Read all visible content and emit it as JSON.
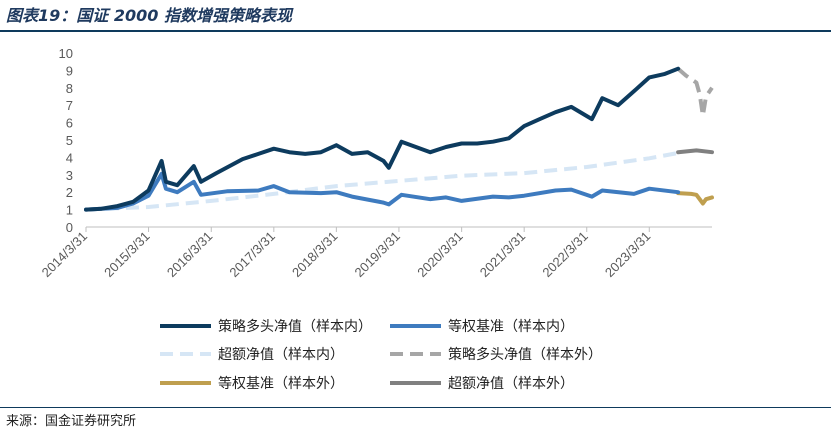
{
  "header": {
    "title": "图表19：国证 2000 指数增强策略表现"
  },
  "footer": {
    "source": "来源：国金证券研究所"
  },
  "chart_data": {
    "type": "line",
    "title": "",
    "xlabel": "",
    "ylabel": "",
    "ylim": [
      0,
      10
    ],
    "yticks": [
      "0",
      "1",
      "2",
      "3",
      "4",
      "5",
      "6",
      "7",
      "8",
      "9",
      "10"
    ],
    "xticks": [
      "2014/3/31",
      "2015/3/31",
      "2016/3/31",
      "2017/3/31",
      "2018/3/31",
      "2019/3/31",
      "2020/3/31",
      "2021/3/31",
      "2022/3/31",
      "2023/3/31"
    ],
    "legend_position": "bottom",
    "series": [
      {
        "name": "策略多头净值（样本内）",
        "color": "#0d3b5e",
        "dash": "solid",
        "width": 4,
        "points": [
          [
            "2014-03-31",
            1.0
          ],
          [
            "2014-06-30",
            1.05
          ],
          [
            "2014-09-30",
            1.2
          ],
          [
            "2014-12-31",
            1.45
          ],
          [
            "2015-03-31",
            2.1
          ],
          [
            "2015-06-15",
            3.8
          ],
          [
            "2015-07-10",
            2.6
          ],
          [
            "2015-09-15",
            2.4
          ],
          [
            "2015-12-20",
            3.5
          ],
          [
            "2016-01-31",
            2.6
          ],
          [
            "2016-04-30",
            3.1
          ],
          [
            "2016-09-30",
            3.9
          ],
          [
            "2016-12-31",
            4.2
          ],
          [
            "2017-03-31",
            4.5
          ],
          [
            "2017-06-30",
            4.3
          ],
          [
            "2017-09-30",
            4.2
          ],
          [
            "2017-12-31",
            4.3
          ],
          [
            "2018-03-31",
            4.7
          ],
          [
            "2018-06-30",
            4.2
          ],
          [
            "2018-09-30",
            4.3
          ],
          [
            "2018-12-31",
            3.8
          ],
          [
            "2019-01-31",
            3.4
          ],
          [
            "2019-04-15",
            4.9
          ],
          [
            "2019-09-30",
            4.3
          ],
          [
            "2019-12-31",
            4.6
          ],
          [
            "2020-03-31",
            4.8
          ],
          [
            "2020-06-30",
            4.8
          ],
          [
            "2020-09-30",
            4.9
          ],
          [
            "2020-12-31",
            5.1
          ],
          [
            "2021-03-31",
            5.8
          ],
          [
            "2021-06-30",
            6.2
          ],
          [
            "2021-09-30",
            6.6
          ],
          [
            "2021-12-31",
            6.9
          ],
          [
            "2022-04-30",
            6.2
          ],
          [
            "2022-06-30",
            7.4
          ],
          [
            "2022-09-30",
            7.0
          ],
          [
            "2022-12-31",
            7.8
          ],
          [
            "2023-03-31",
            8.6
          ],
          [
            "2023-06-30",
            8.8
          ],
          [
            "2023-09-15",
            9.1
          ]
        ]
      },
      {
        "name": "等权基准（样本内）",
        "color": "#3e7bbf",
        "dash": "solid",
        "width": 4,
        "points": [
          [
            "2014-03-31",
            1.0
          ],
          [
            "2014-09-30",
            1.1
          ],
          [
            "2014-12-31",
            1.35
          ],
          [
            "2015-03-31",
            1.8
          ],
          [
            "2015-06-15",
            3.05
          ],
          [
            "2015-07-10",
            2.2
          ],
          [
            "2015-09-15",
            2.0
          ],
          [
            "2015-12-20",
            2.6
          ],
          [
            "2016-01-31",
            1.85
          ],
          [
            "2016-06-30",
            2.05
          ],
          [
            "2016-12-31",
            2.1
          ],
          [
            "2017-03-31",
            2.35
          ],
          [
            "2017-06-30",
            2.0
          ],
          [
            "2017-12-31",
            1.95
          ],
          [
            "2018-03-31",
            2.0
          ],
          [
            "2018-06-30",
            1.75
          ],
          [
            "2018-12-31",
            1.4
          ],
          [
            "2019-01-31",
            1.3
          ],
          [
            "2019-04-15",
            1.85
          ],
          [
            "2019-09-30",
            1.6
          ],
          [
            "2019-12-31",
            1.7
          ],
          [
            "2020-03-31",
            1.5
          ],
          [
            "2020-09-30",
            1.75
          ],
          [
            "2020-12-31",
            1.7
          ],
          [
            "2021-03-31",
            1.8
          ],
          [
            "2021-09-30",
            2.1
          ],
          [
            "2021-12-31",
            2.15
          ],
          [
            "2022-04-30",
            1.75
          ],
          [
            "2022-06-30",
            2.1
          ],
          [
            "2022-12-31",
            1.9
          ],
          [
            "2023-03-31",
            2.2
          ],
          [
            "2023-09-15",
            2.0
          ]
        ]
      },
      {
        "name": "超额净值（样本内）",
        "color": "#d6e6f5",
        "dash": "dash",
        "width": 4,
        "points": [
          [
            "2014-03-31",
            1.0
          ],
          [
            "2015-03-31",
            1.15
          ],
          [
            "2016-03-31",
            1.5
          ],
          [
            "2017-03-31",
            1.9
          ],
          [
            "2018-03-31",
            2.35
          ],
          [
            "2019-03-31",
            2.65
          ],
          [
            "2020-03-31",
            2.95
          ],
          [
            "2021-03-31",
            3.1
          ],
          [
            "2022-03-31",
            3.45
          ],
          [
            "2023-03-31",
            3.95
          ],
          [
            "2023-09-15",
            4.25
          ]
        ]
      },
      {
        "name": "策略多头净值（样本外）",
        "color": "#a6a6a6",
        "dash": "dash",
        "width": 4,
        "points": [
          [
            "2023-09-15",
            9.1
          ],
          [
            "2023-10-31",
            8.7
          ],
          [
            "2023-12-31",
            8.3
          ],
          [
            "2024-01-20",
            7.6
          ],
          [
            "2024-02-07",
            6.4
          ],
          [
            "2024-02-25",
            7.5
          ],
          [
            "2024-03-31",
            8.0
          ]
        ]
      },
      {
        "name": "等权基准（样本外）",
        "color": "#bf9f4f",
        "dash": "solid",
        "width": 4,
        "points": [
          [
            "2023-09-15",
            1.95
          ],
          [
            "2023-11-30",
            1.9
          ],
          [
            "2023-12-31",
            1.85
          ],
          [
            "2024-02-07",
            1.35
          ],
          [
            "2024-02-25",
            1.6
          ],
          [
            "2024-03-31",
            1.7
          ]
        ]
      },
      {
        "name": "超额净值（样本外）",
        "color": "#808080",
        "dash": "solid",
        "width": 4,
        "points": [
          [
            "2023-09-15",
            4.3
          ],
          [
            "2023-12-31",
            4.4
          ],
          [
            "2024-03-31",
            4.3
          ]
        ]
      }
    ]
  }
}
